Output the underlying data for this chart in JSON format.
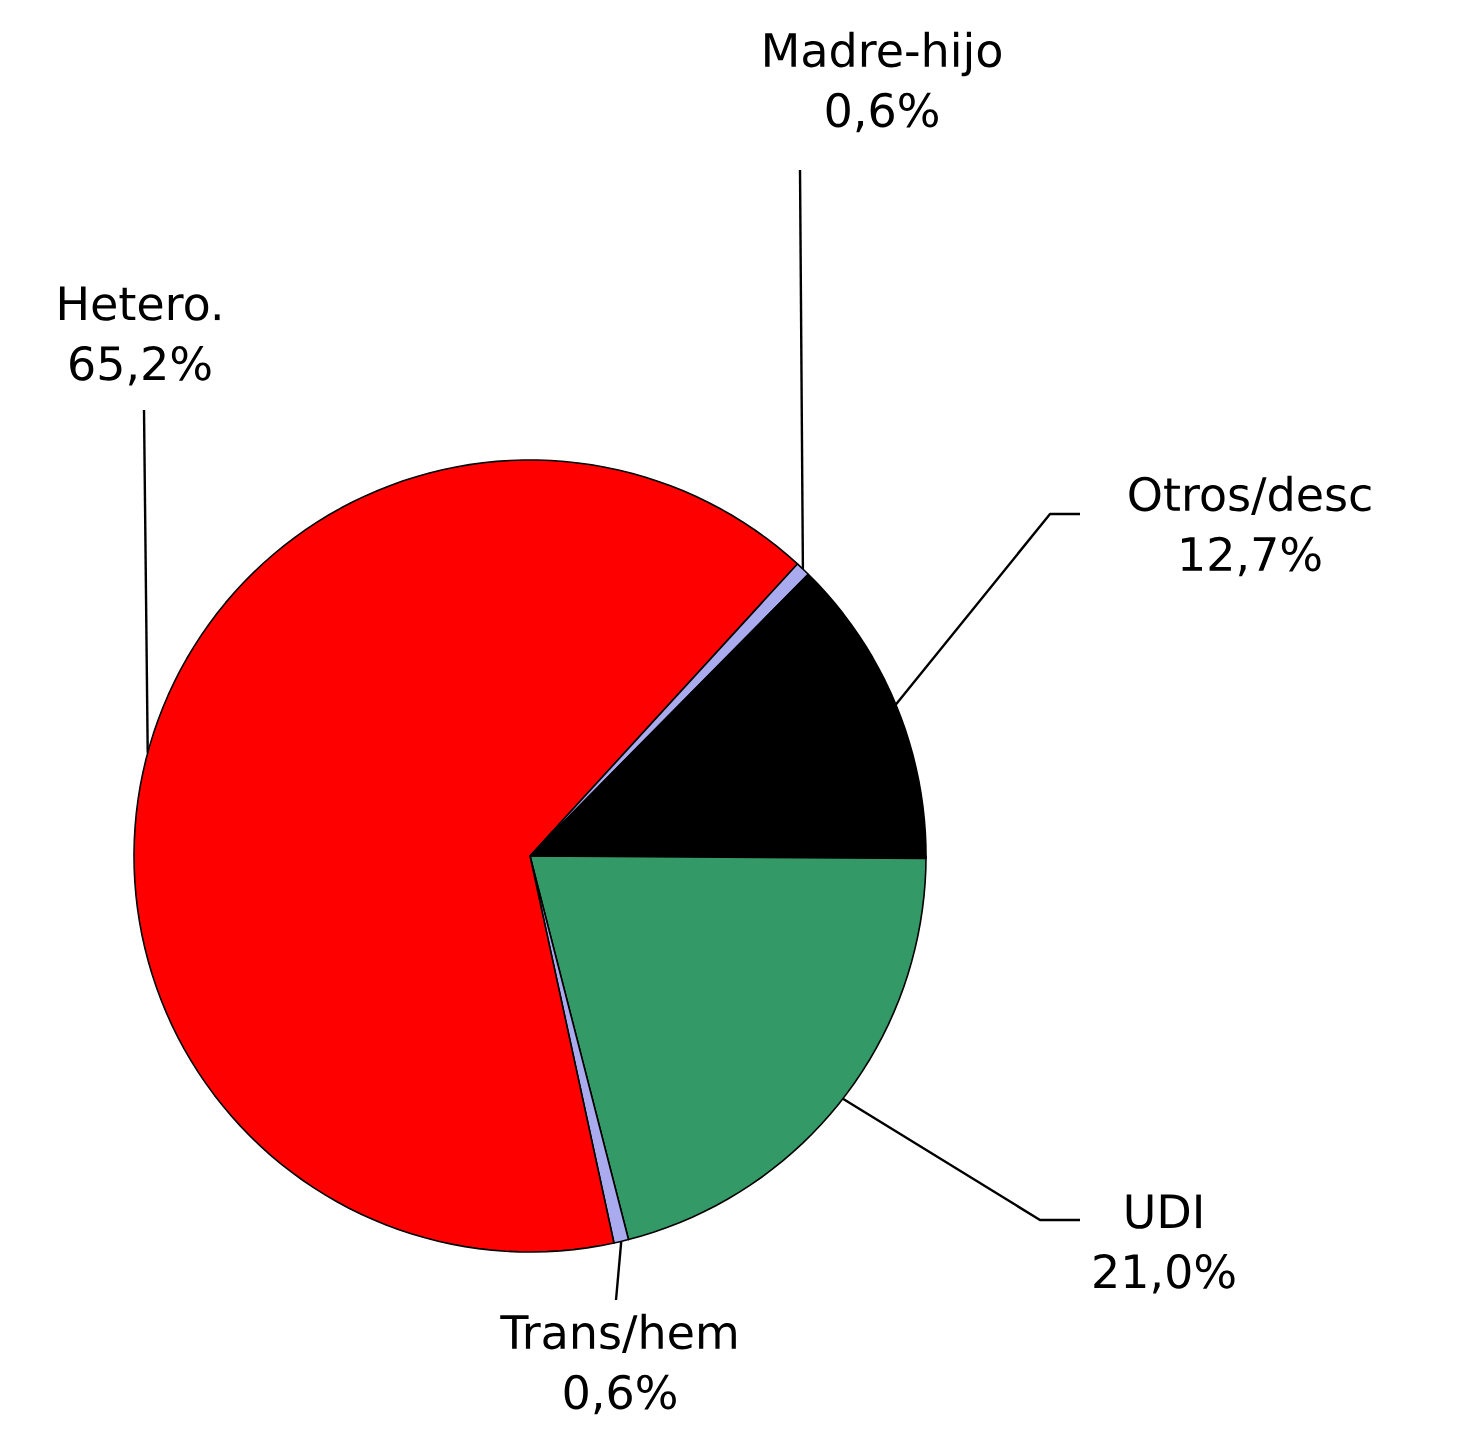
{
  "chart_data": {
    "type": "pie",
    "categories": [
      "UDI",
      "Trans/hem",
      "Hetero.",
      "Madre-hijo",
      "Otros/desc"
    ],
    "values": [
      21.0,
      0.6,
      65.2,
      0.6,
      12.7
    ],
    "value_labels": [
      "21,0%",
      "0,6%",
      "65,2%",
      "0,6%",
      "12,7%"
    ],
    "colors": [
      "#339966",
      "#aaaaee",
      "#ff0000",
      "#aaaaee",
      "#000000"
    ]
  }
}
